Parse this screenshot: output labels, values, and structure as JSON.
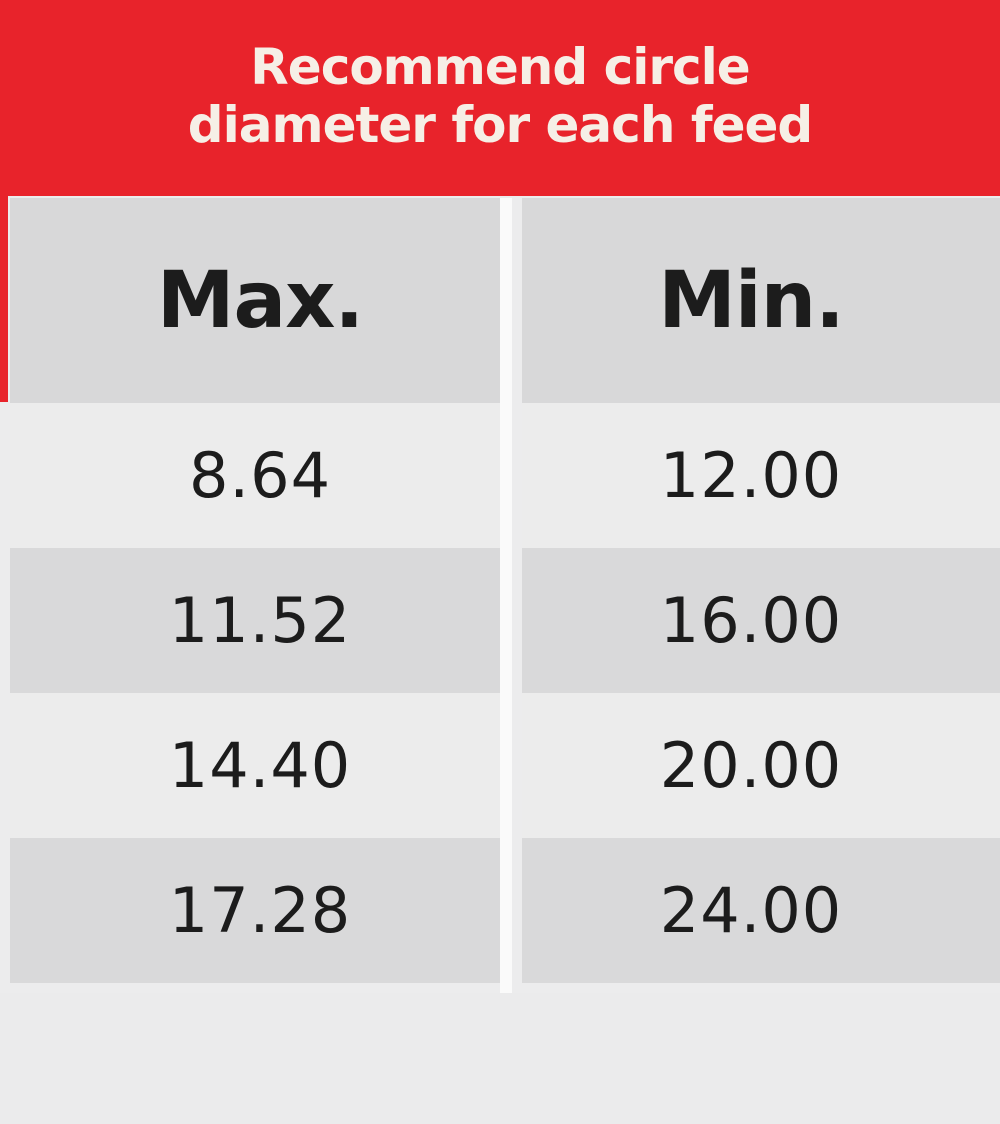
{
  "title": "Recommend circle diameter for each feed",
  "columns": {
    "max": "Max.",
    "min": "Min."
  },
  "rows": [
    {
      "max": "8.64",
      "min": "12.00"
    },
    {
      "max": "11.52",
      "min": "16.00"
    },
    {
      "max": "14.40",
      "min": "20.00"
    },
    {
      "max": "17.28",
      "min": "24.00"
    }
  ],
  "colors": {
    "banner": "#e8232b",
    "banner_text": "#f6efe6",
    "header_cells": "#d8d8d9",
    "row_light": "#ececec",
    "row_dark": "#d9d9da",
    "text": "#1c1c1c"
  }
}
